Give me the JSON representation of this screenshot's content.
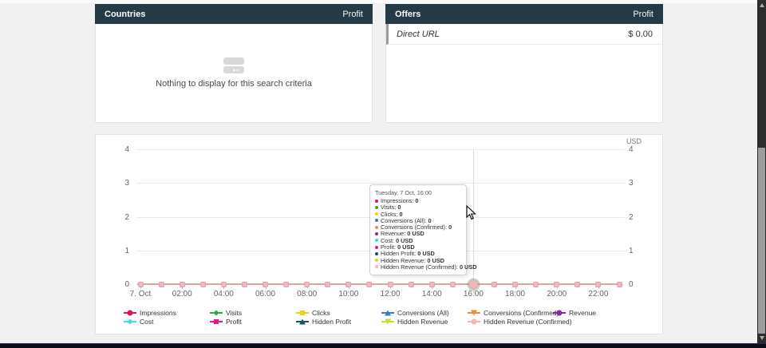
{
  "panels": {
    "countries": {
      "title": "Countries",
      "metric": "Profit",
      "empty_text": "Nothing to display for this search criteria",
      "empty_icon": "stack-icon",
      "header_color": "#243a47"
    },
    "offers": {
      "title": "Offers",
      "metric": "Profit",
      "rows": [
        {
          "label": "Direct URL",
          "value": "$ 0.00"
        }
      ]
    }
  },
  "chart_data": {
    "type": "line",
    "title": "",
    "xlabel": "",
    "ylabel": "USD",
    "unit": "USD",
    "ylim": [
      0,
      4
    ],
    "yticks": [
      0,
      1,
      2,
      3,
      4
    ],
    "grid": true,
    "legend_position": "bottom",
    "x": [
      "00:00",
      "01:00",
      "02:00",
      "03:00",
      "04:00",
      "05:00",
      "06:00",
      "07:00",
      "08:00",
      "09:00",
      "10:00",
      "11:00",
      "12:00",
      "13:00",
      "14:00",
      "15:00",
      "16:00",
      "17:00",
      "18:00",
      "19:00",
      "20:00",
      "21:00",
      "22:00",
      "23:00"
    ],
    "x_tick_labels": [
      "7. Oct",
      "02:00",
      "04:00",
      "06:00",
      "08:00",
      "10:00",
      "12:00",
      "14:00",
      "16:00",
      "18:00",
      "20:00",
      "22:00"
    ],
    "hovered_index": 16,
    "line_color": "#dca49b",
    "marker_fill": "#f3b6ba",
    "series": [
      {
        "name": "Impressions",
        "color": "#e4134f",
        "marker": "circle",
        "values": [
          0,
          0,
          0,
          0,
          0,
          0,
          0,
          0,
          0,
          0,
          0,
          0,
          0,
          0,
          0,
          0,
          0,
          0,
          0,
          0,
          0,
          0,
          0,
          0
        ]
      },
      {
        "name": "Visits",
        "color": "#2da44e",
        "marker": "diamond",
        "values": [
          0,
          0,
          0,
          0,
          0,
          0,
          0,
          0,
          0,
          0,
          0,
          0,
          0,
          0,
          0,
          0,
          0,
          0,
          0,
          0,
          0,
          0,
          0,
          0
        ]
      },
      {
        "name": "Clicks",
        "color": "#f7cf13",
        "marker": "square",
        "values": [
          0,
          0,
          0,
          0,
          0,
          0,
          0,
          0,
          0,
          0,
          0,
          0,
          0,
          0,
          0,
          0,
          0,
          0,
          0,
          0,
          0,
          0,
          0,
          0
        ]
      },
      {
        "name": "Conversions (All)",
        "color": "#2c7fc4",
        "marker": "triangle-up",
        "values": [
          0,
          0,
          0,
          0,
          0,
          0,
          0,
          0,
          0,
          0,
          0,
          0,
          0,
          0,
          0,
          0,
          0,
          0,
          0,
          0,
          0,
          0,
          0,
          0
        ]
      },
      {
        "name": "Conversions (Confirmed)",
        "color": "#ef8c36",
        "marker": "triangle-down",
        "values": [
          0,
          0,
          0,
          0,
          0,
          0,
          0,
          0,
          0,
          0,
          0,
          0,
          0,
          0,
          0,
          0,
          0,
          0,
          0,
          0,
          0,
          0,
          0,
          0
        ]
      },
      {
        "name": "Revenue",
        "color": "#7d2ea0",
        "marker": "circle",
        "values": [
          0,
          0,
          0,
          0,
          0,
          0,
          0,
          0,
          0,
          0,
          0,
          0,
          0,
          0,
          0,
          0,
          0,
          0,
          0,
          0,
          0,
          0,
          0,
          0
        ]
      },
      {
        "name": "Cost",
        "color": "#3fd6e6",
        "marker": "diamond",
        "values": [
          0,
          0,
          0,
          0,
          0,
          0,
          0,
          0,
          0,
          0,
          0,
          0,
          0,
          0,
          0,
          0,
          0,
          0,
          0,
          0,
          0,
          0,
          0,
          0
        ]
      },
      {
        "name": "Profit",
        "color": "#e6198f",
        "marker": "square",
        "values": [
          0,
          0,
          0,
          0,
          0,
          0,
          0,
          0,
          0,
          0,
          0,
          0,
          0,
          0,
          0,
          0,
          0,
          0,
          0,
          0,
          0,
          0,
          0,
          0
        ]
      },
      {
        "name": "Hidden Profit",
        "color": "#17506e",
        "marker": "triangle-up",
        "values": [
          0,
          0,
          0,
          0,
          0,
          0,
          0,
          0,
          0,
          0,
          0,
          0,
          0,
          0,
          0,
          0,
          0,
          0,
          0,
          0,
          0,
          0,
          0,
          0
        ]
      },
      {
        "name": "Hidden Revenue",
        "color": "#cadd31",
        "marker": "triangle-down",
        "values": [
          0,
          0,
          0,
          0,
          0,
          0,
          0,
          0,
          0,
          0,
          0,
          0,
          0,
          0,
          0,
          0,
          0,
          0,
          0,
          0,
          0,
          0,
          0,
          0
        ]
      },
      {
        "name": "Hidden Revenue (Confirmed)",
        "color": "#f5b4b8",
        "marker": "circle",
        "values": [
          0,
          0,
          0,
          0,
          0,
          0,
          0,
          0,
          0,
          0,
          0,
          0,
          0,
          0,
          0,
          0,
          0,
          0,
          0,
          0,
          0,
          0,
          0,
          0
        ]
      }
    ]
  },
  "tooltip": {
    "title": "Tuesday, 7 Oct, 16:00",
    "items": [
      {
        "name": "Impressions",
        "value": "0"
      },
      {
        "name": "Visits",
        "value": "0"
      },
      {
        "name": "Clicks",
        "value": "0"
      },
      {
        "name": "Conversions (All)",
        "value": "0"
      },
      {
        "name": "Conversions (Confirmed)",
        "value": "0"
      },
      {
        "name": "Revenue",
        "value": "0 USD"
      },
      {
        "name": "Cost",
        "value": "0 USD"
      },
      {
        "name": "Profit",
        "value": "0 USD"
      },
      {
        "name": "Hidden Profit",
        "value": "0 USD"
      },
      {
        "name": "Hidden Revenue",
        "value": "0 USD"
      },
      {
        "name": "Hidden Revenue (Confirmed)",
        "value": "0 USD"
      }
    ]
  }
}
